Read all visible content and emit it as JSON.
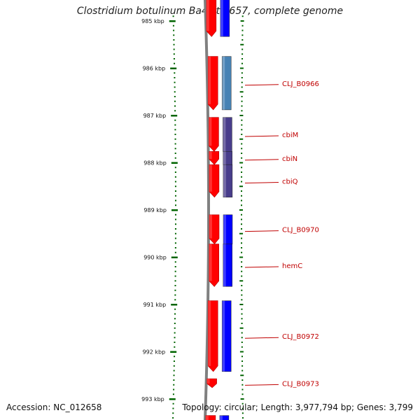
{
  "title": "Clostridium botulinum Ba4 str. 657, complete genome",
  "footer": {
    "accession": "Accession: NC_012658",
    "topology": "Topology: circular; Length: 3,977,794 bp; Genes: 3,799"
  },
  "colors": {
    "forward_cds": "#ff0000",
    "cog_blue": "#0000ff",
    "cog_steelblue": "#4682b4",
    "cog_purple": "#483d8b",
    "backbone": "#808080",
    "tick": "#006400",
    "label": "#c00000"
  },
  "ruler": [
    {
      "kbp": 985,
      "label": "985 kbp"
    },
    {
      "kbp": 986,
      "label": "986 kbp"
    },
    {
      "kbp": 987,
      "label": "987 kbp"
    },
    {
      "kbp": 988,
      "label": "988 kbp"
    },
    {
      "kbp": 989,
      "label": "989 kbp"
    },
    {
      "kbp": 990,
      "label": "990 kbp"
    },
    {
      "kbp": 991,
      "label": "991 kbp"
    },
    {
      "kbp": 992,
      "label": "992 kbp"
    },
    {
      "kbp": 993,
      "label": "993 kbp"
    }
  ],
  "features": [
    {
      "label": "",
      "start": 984.5,
      "end": 985.33,
      "cog": "cog_blue"
    },
    {
      "label": "CLJ_B0966",
      "start": 985.75,
      "end": 986.88,
      "cog": "cog_steelblue"
    },
    {
      "label": "cbiM",
      "start": 987.04,
      "end": 987.76,
      "cog": "cog_purple"
    },
    {
      "label": "cbiN",
      "start": 987.76,
      "end": 988.04,
      "cog": "cog_purple"
    },
    {
      "label": "cbiQ",
      "start": 988.04,
      "end": 988.73,
      "cog": "cog_purple"
    },
    {
      "label": "CLJ_B0970",
      "start": 989.1,
      "end": 989.72,
      "cog": "cog_blue"
    },
    {
      "label": "hemC",
      "start": 989.72,
      "end": 990.62,
      "cog": "cog_blue"
    },
    {
      "label": "CLJ_B0972",
      "start": 990.92,
      "end": 992.42,
      "cog": "cog_blue"
    },
    {
      "label": "CLJ_B0973",
      "start": 992.57,
      "end": 992.76,
      "cog": ""
    },
    {
      "label": "",
      "start": 993.35,
      "end": 993.6,
      "cog": "cog_blue"
    }
  ]
}
